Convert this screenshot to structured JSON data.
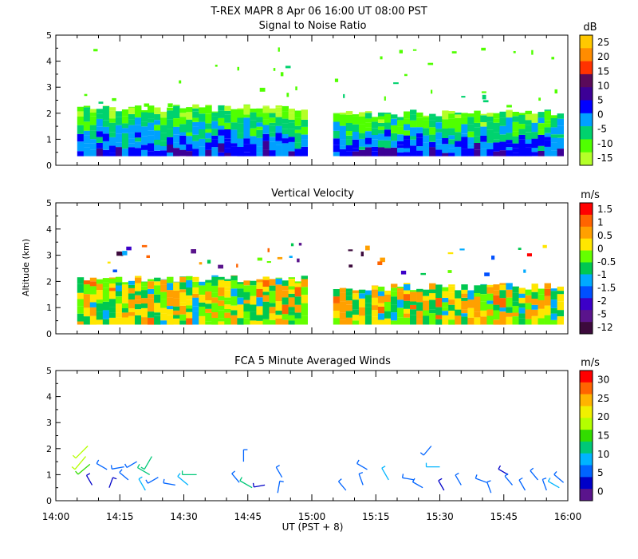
{
  "header": {
    "title": "T-REX   MAPR   8 Apr 06   16:00 UT   08:00   PST"
  },
  "xaxis": {
    "label": "UT  (PST + 8)",
    "ticks": [
      "14:00",
      "14:15",
      "14:30",
      "14:45",
      "15:00",
      "15:15",
      "15:30",
      "15:45",
      "16:00"
    ]
  },
  "yaxis_label": "Altitude (km)",
  "y_ticks": [
    "0",
    "1",
    "2",
    "3",
    "4",
    "5"
  ],
  "chart_data": [
    {
      "type": "heatmap",
      "title": "Signal to Noise Ratio",
      "unit": "dB",
      "xlim": [
        "14:00",
        "16:00"
      ],
      "ylim": [
        0,
        5
      ],
      "colorbar": {
        "labels": [
          "25",
          "20",
          "15",
          "10",
          "5",
          "0",
          "-5",
          "-10",
          "-15"
        ],
        "colors": [
          "#ffc800",
          "#ff8c00",
          "#ff3200",
          "#5a0a5a",
          "#3c0096",
          "#0000ff",
          "#00a0ff",
          "#00d26e",
          "#50ff00",
          "#b4ff28"
        ]
      },
      "data_gap": [
        "14:59",
        "15:05"
      ],
      "data_top_km": {
        "left": 2.2,
        "right": 2.0
      },
      "data_bottom_km": 0.35
    },
    {
      "type": "heatmap",
      "title": "Vertical Velocity",
      "unit": "m/s",
      "xlim": [
        "14:00",
        "16:00"
      ],
      "ylim": [
        0,
        5
      ],
      "colorbar": {
        "labels": [
          "1.5",
          "1",
          "0.5",
          "0",
          "-0.5",
          "-1",
          "-1.5",
          "-2",
          "-5",
          "-12"
        ],
        "colors": [
          "#ff0000",
          "#ff6400",
          "#ffa000",
          "#ffe600",
          "#64ff00",
          "#00c850",
          "#00aaff",
          "#0050ff",
          "#3c00c8",
          "#5a148c",
          "#3c0a3c"
        ]
      },
      "data_gap": [
        "14:59",
        "15:05"
      ],
      "data_top_km": {
        "left": 2.1,
        "right": 1.8
      },
      "data_bottom_km": 0.35
    },
    {
      "type": "scatter",
      "title": "FCA 5 Minute Averaged Winds",
      "unit": "m/s",
      "xlim": [
        "14:00",
        "16:00"
      ],
      "ylim": [
        0,
        5
      ],
      "colorbar": {
        "labels": [
          "30",
          "25",
          "20",
          "15",
          "10",
          "5",
          "0"
        ],
        "colors": [
          "#ff0000",
          "#ff6400",
          "#ffb400",
          "#f0f000",
          "#b4ff00",
          "#32dc00",
          "#00c878",
          "#00b4ff",
          "#0064ff",
          "#0000c8",
          "#5a148c"
        ]
      },
      "barbs": [
        {
          "t": 7,
          "z": 1.7,
          "speed": 18,
          "dir": 220
        },
        {
          "t": 7.5,
          "z": 2.1,
          "speed": 19,
          "dir": 225
        },
        {
          "t": 8,
          "z": 1.4,
          "speed": 15,
          "dir": 230
        },
        {
          "t": 8.5,
          "z": 0.6,
          "speed": 4,
          "dir": 330
        },
        {
          "t": 12,
          "z": 1.2,
          "speed": 6,
          "dir": 300
        },
        {
          "t": 12.5,
          "z": 0.5,
          "speed": 3,
          "dir": 20
        },
        {
          "t": 16,
          "z": 1.3,
          "speed": 7,
          "dir": 260
        },
        {
          "t": 17,
          "z": 0.8,
          "speed": 5,
          "dir": 310
        },
        {
          "t": 19,
          "z": 1.5,
          "speed": 5,
          "dir": 240
        },
        {
          "t": 21,
          "z": 0.4,
          "speed": 9,
          "dir": 330
        },
        {
          "t": 22,
          "z": 1.0,
          "speed": 11,
          "dir": 300
        },
        {
          "t": 22.5,
          "z": 1.7,
          "speed": 13,
          "dir": 210
        },
        {
          "t": 24,
          "z": 0.9,
          "speed": 6,
          "dir": 240
        },
        {
          "t": 28,
          "z": 0.6,
          "speed": 6,
          "dir": 280
        },
        {
          "t": 31,
          "z": 0.6,
          "speed": 10,
          "dir": 310
        },
        {
          "t": 33,
          "z": 1.0,
          "speed": 12,
          "dir": 270
        },
        {
          "t": 43,
          "z": 0.7,
          "speed": 5,
          "dir": 320
        },
        {
          "t": 44,
          "z": 1.5,
          "speed": 6,
          "dir": 0
        },
        {
          "t": 46,
          "z": 0.5,
          "speed": 11,
          "dir": 300
        },
        {
          "t": 49,
          "z": 0.6,
          "speed": 4,
          "dir": 260
        },
        {
          "t": 52,
          "z": 0.3,
          "speed": 6,
          "dir": 10
        },
        {
          "t": 53,
          "z": 0.9,
          "speed": 5,
          "dir": 330
        },
        {
          "t": 68,
          "z": 0.4,
          "speed": 5,
          "dir": 320
        },
        {
          "t": 72,
          "z": 0.6,
          "speed": 6,
          "dir": 340
        },
        {
          "t": 73,
          "z": 1.2,
          "speed": 6,
          "dir": 300
        },
        {
          "t": 78,
          "z": 0.8,
          "speed": 10,
          "dir": 330
        },
        {
          "t": 84,
          "z": 0.8,
          "speed": 6,
          "dir": 280
        },
        {
          "t": 86,
          "z": 0.5,
          "speed": 5,
          "dir": 300
        },
        {
          "t": 88,
          "z": 2.1,
          "speed": 6,
          "dir": 220
        },
        {
          "t": 90,
          "z": 1.3,
          "speed": 10,
          "dir": 270
        },
        {
          "t": 91,
          "z": 0.4,
          "speed": 4,
          "dir": 330
        },
        {
          "t": 95,
          "z": 0.6,
          "speed": 5,
          "dir": 330
        },
        {
          "t": 101,
          "z": 0.7,
          "speed": 6,
          "dir": 290
        },
        {
          "t": 102,
          "z": 0.3,
          "speed": 5,
          "dir": 340
        },
        {
          "t": 106,
          "z": 1.0,
          "speed": 4,
          "dir": 300
        },
        {
          "t": 107,
          "z": 0.6,
          "speed": 5,
          "dir": 320
        },
        {
          "t": 110,
          "z": 0.4,
          "speed": 6,
          "dir": 330
        },
        {
          "t": 113,
          "z": 0.8,
          "speed": 6,
          "dir": 320
        },
        {
          "t": 115,
          "z": 0.4,
          "speed": 5,
          "dir": 340
        },
        {
          "t": 118,
          "z": 0.5,
          "speed": 8,
          "dir": 300
        },
        {
          "t": 119,
          "z": 0.7,
          "speed": 7,
          "dir": 310
        }
      ]
    }
  ]
}
